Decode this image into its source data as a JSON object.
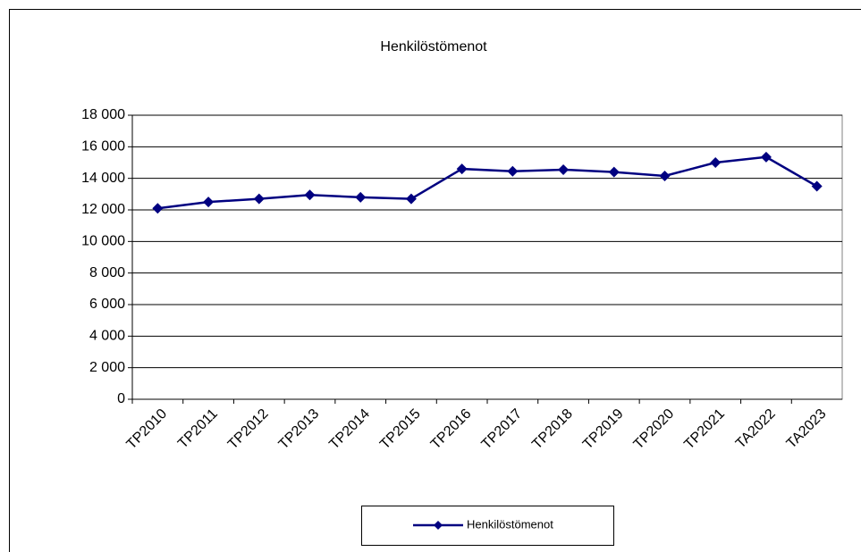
{
  "chart_data": {
    "type": "line",
    "title": "Henkilöstömenot",
    "categories": [
      "TP2010",
      "TP2011",
      "TP2012",
      "TP2013",
      "TP2014",
      "TP2015",
      "TP2016",
      "TP2017",
      "TP2018",
      "TP2019",
      "TP2020",
      "TP2021",
      "TA2022",
      "TA2023"
    ],
    "series": [
      {
        "name": "Henkilöstömenot",
        "color": "#000080",
        "values": [
          12100,
          12500,
          12700,
          12950,
          12800,
          12700,
          14600,
          14450,
          14550,
          14400,
          14150,
          15000,
          15350,
          13500
        ]
      }
    ],
    "ylim": [
      0,
      18000
    ],
    "yticks": [
      0,
      {
        "value": 2000,
        "label": "2 000"
      },
      {
        "value": 4000,
        "label": "4 000"
      },
      {
        "value": 6000,
        "label": "6 000"
      },
      {
        "value": 8000,
        "label": "8 000"
      },
      {
        "value": 10000,
        "label": "10 000"
      },
      {
        "value": 12000,
        "label": "12 000"
      },
      {
        "value": 14000,
        "label": "14 000"
      },
      {
        "value": 16000,
        "label": "16 000"
      },
      {
        "value": 18000,
        "label": "18 000"
      }
    ],
    "grid": true,
    "legend": "bottom"
  }
}
